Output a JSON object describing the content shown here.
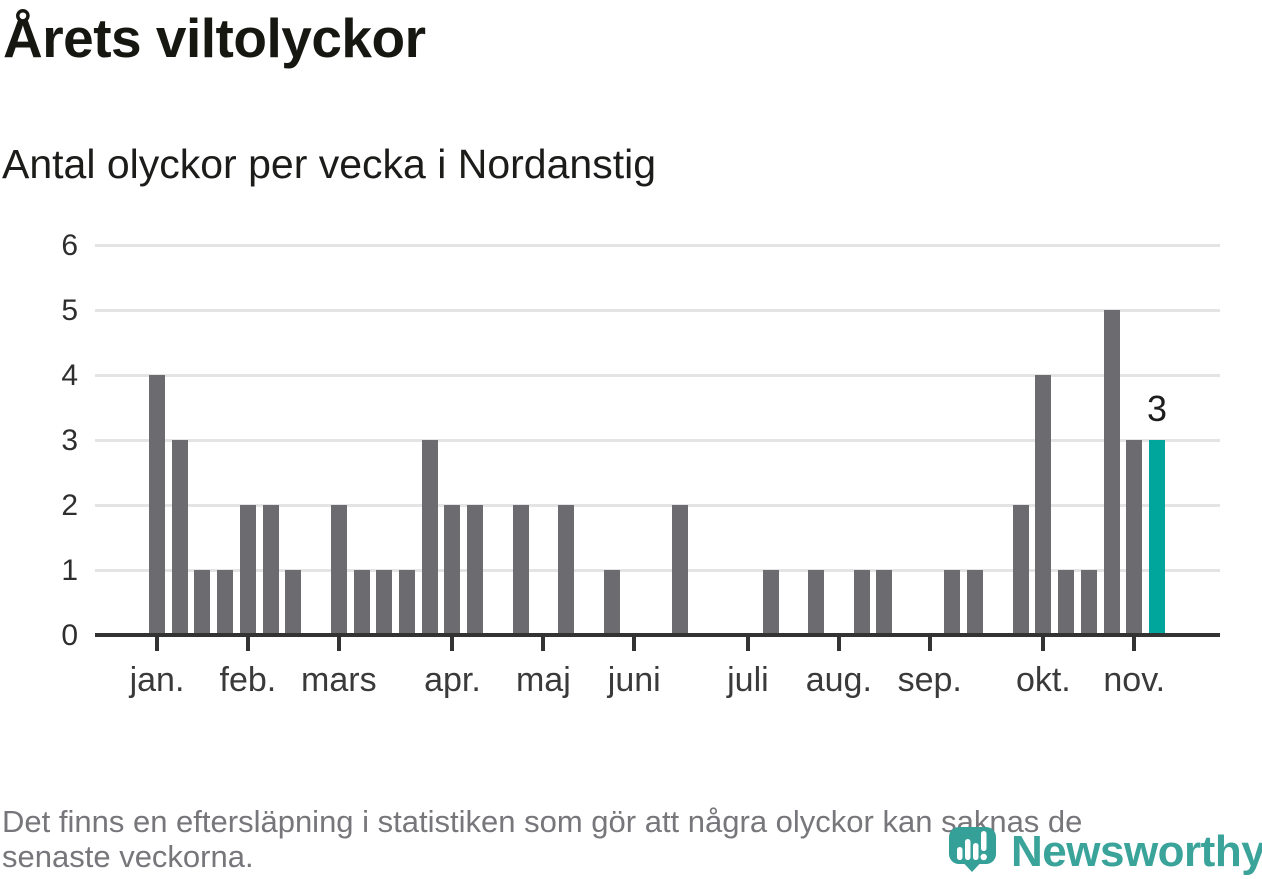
{
  "header": {
    "title": "Årets viltolyckor",
    "subtitle": "Antal olyckor per vecka i Nordanstig"
  },
  "chart_data": {
    "type": "bar",
    "title": "Årets viltolyckor",
    "subtitle": "Antal olyckor per vecka i Nordanstig",
    "ylabel": "",
    "xlabel": "",
    "categories": [
      "v1",
      "v2",
      "v3",
      "v4",
      "v5",
      "v6",
      "v7",
      "v8",
      "v9",
      "v10",
      "v11",
      "v12",
      "v13",
      "v14",
      "v15",
      "v16",
      "v17",
      "v18",
      "v19",
      "v20",
      "v21",
      "v22",
      "v23",
      "v24",
      "v25",
      "v26",
      "v27",
      "v28",
      "v29",
      "v30",
      "v31",
      "v32",
      "v33",
      "v34",
      "v35",
      "v36",
      "v37",
      "v38",
      "v39",
      "v40",
      "v41",
      "v42",
      "v43",
      "v44",
      "v45"
    ],
    "values": [
      4,
      3,
      1,
      1,
      2,
      2,
      1,
      0,
      2,
      1,
      1,
      1,
      3,
      2,
      2,
      0,
      2,
      0,
      2,
      0,
      1,
      0,
      0,
      2,
      0,
      0,
      0,
      1,
      0,
      1,
      0,
      1,
      1,
      0,
      0,
      1,
      1,
      0,
      2,
      4,
      1,
      1,
      5,
      3,
      3
    ],
    "ylim": [
      0,
      6
    ],
    "yticks": [
      0,
      1,
      2,
      3,
      4,
      5,
      6
    ],
    "grid": "horizontal",
    "legend": "none",
    "month_ticks": [
      {
        "label": "jan.",
        "week": 1
      },
      {
        "label": "feb.",
        "week": 5
      },
      {
        "label": "mars",
        "week": 9
      },
      {
        "label": "apr.",
        "week": 14
      },
      {
        "label": "maj",
        "week": 18
      },
      {
        "label": "juni",
        "week": 22
      },
      {
        "label": "juli",
        "week": 27
      },
      {
        "label": "aug.",
        "week": 31
      },
      {
        "label": "sep.",
        "week": 35
      },
      {
        "label": "okt.",
        "week": 40
      },
      {
        "label": "nov.",
        "week": 44
      }
    ],
    "highlight_last_bar": true,
    "last_bar_value_label": "3",
    "colors": {
      "bar": "#6b6b70",
      "highlight": "#00a59b",
      "grid": "#e4e4e4",
      "axis": "#333333"
    }
  },
  "footer": {
    "lines": [
      "Det finns en eftersläpning i statistiken som gör att några olyckor kan saknas de",
      "senaste veckorna."
    ]
  },
  "logo": {
    "wordmark": "Newsworthy",
    "color": "#3aa39a",
    "icon": "newsworthy-pin-barchart-icon"
  }
}
